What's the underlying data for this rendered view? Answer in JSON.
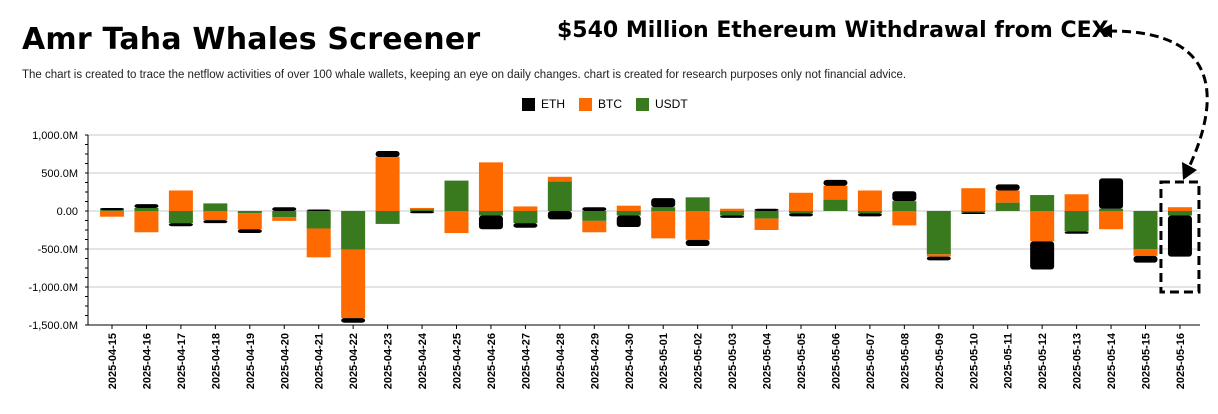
{
  "header": {
    "title": "Amr Taha Whales Screener",
    "subtitle": "The chart is created to trace the netflow activities of over 100 whale wallets, keeping an eye on daily changes.  chart is created for research purposes only not financial advice.",
    "annotation": "$540 Million Ethereum Withdrawal from CEX"
  },
  "colors": {
    "ETH": "#000000",
    "BTC": "#ff6a00",
    "USDT": "#3a7a1e",
    "grid": "#c8c8c8"
  },
  "chart_data": {
    "type": "bar",
    "stacked": true,
    "title": "Amr Taha Whales Screener",
    "xlabel": "",
    "ylabel": "",
    "ylim": [
      -1500,
      1000
    ],
    "yticks": [
      1000,
      500,
      0,
      -500,
      -1000,
      -1500
    ],
    "ytick_labels": [
      "1,000.0M",
      "500.0M",
      "0.00",
      "-500.0M",
      "-1,000.0M",
      "-1,500.0M"
    ],
    "legend_position": "top-center",
    "categories": [
      "2025-04-15",
      "2025-04-16",
      "2025-04-17",
      "2025-04-18",
      "2025-04-19",
      "2025-04-20",
      "2025-04-21",
      "2025-04-22",
      "2025-04-23",
      "2025-04-24",
      "2025-04-25",
      "2025-04-26",
      "2025-04-27",
      "2025-04-28",
      "2025-04-29",
      "2025-04-30",
      "2025-05-01",
      "2025-05-02",
      "2025-05-03",
      "2025-05-04",
      "2025-05-05",
      "2025-05-06",
      "2025-05-07",
      "2025-05-08",
      "2025-05-09",
      "2025-05-10",
      "2025-05-11",
      "2025-05-12",
      "2025-05-13",
      "2025-05-14",
      "2025-05-15",
      "2025-05-16"
    ],
    "series": [
      {
        "name": "USDT",
        "values": [
          10,
          40,
          -160,
          100,
          -30,
          -80,
          -230,
          -510,
          -170,
          20,
          400,
          -60,
          -160,
          390,
          -130,
          -60,
          50,
          180,
          -60,
          -100,
          -30,
          150,
          -30,
          130,
          -570,
          -20,
          110,
          210,
          -270,
          30,
          -500,
          -60
        ]
      },
      {
        "name": "BTC",
        "values": [
          -75,
          -280,
          270,
          -120,
          -210,
          -50,
          -380,
          -900,
          710,
          20,
          -290,
          640,
          60,
          60,
          -150,
          70,
          -360,
          -380,
          30,
          -150,
          240,
          180,
          270,
          -190,
          -30,
          300,
          160,
          -400,
          220,
          -240,
          -90,
          50
        ]
      },
      {
        "name": "ETH",
        "values": [
          30,
          50,
          -40,
          -40,
          -50,
          50,
          20,
          -60,
          80,
          -30,
          0,
          -180,
          -60,
          -110,
          50,
          -150,
          120,
          -80,
          -30,
          30,
          -40,
          80,
          -40,
          130,
          -50,
          -20,
          80,
          -370,
          -30,
          400,
          -90,
          -540
        ]
      }
    ],
    "highlight": {
      "category": "2025-05-16",
      "label": "$540 Million Ethereum Withdrawal from CEX"
    }
  }
}
